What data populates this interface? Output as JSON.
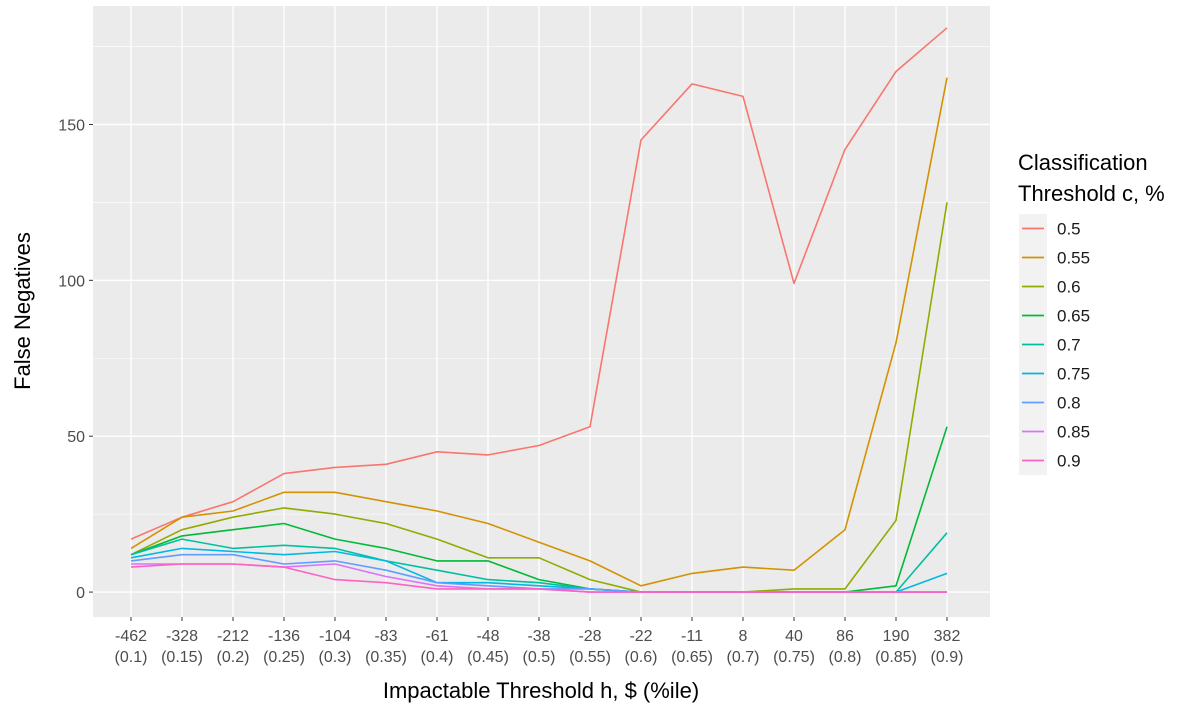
{
  "chart_data": {
    "type": "line",
    "title": "",
    "xlabel": "Impactable Threshold h, $ (%ile)",
    "ylabel": "False Negatives",
    "x_categories": [
      {
        "value": "-462",
        "pct": "(0.1)"
      },
      {
        "value": "-328",
        "pct": "(0.15)"
      },
      {
        "value": "-212",
        "pct": "(0.2)"
      },
      {
        "value": "-136",
        "pct": "(0.25)"
      },
      {
        "value": "-104",
        "pct": "(0.3)"
      },
      {
        "value": "-83",
        "pct": "(0.35)"
      },
      {
        "value": "-61",
        "pct": "(0.4)"
      },
      {
        "value": "-48",
        "pct": "(0.45)"
      },
      {
        "value": "-38",
        "pct": "(0.5)"
      },
      {
        "value": "-28",
        "pct": "(0.55)"
      },
      {
        "value": "-22",
        "pct": "(0.6)"
      },
      {
        "value": "-11",
        "pct": "(0.65)"
      },
      {
        "value": "8",
        "pct": "(0.7)"
      },
      {
        "value": "40",
        "pct": "(0.75)"
      },
      {
        "value": "86",
        "pct": "(0.8)"
      },
      {
        "value": "190",
        "pct": "(0.85)"
      },
      {
        "value": "382",
        "pct": "(0.9)"
      }
    ],
    "y_ticks": [
      0,
      50,
      100,
      150
    ],
    "ylim": [
      -8,
      188
    ],
    "grid": true,
    "legend": {
      "title_lines": [
        "Classification",
        "Threshold c, %"
      ],
      "placement": "right"
    },
    "series": [
      {
        "name": "0.5",
        "color": "#F8766D",
        "values": [
          17,
          24,
          29,
          38,
          40,
          41,
          45,
          44,
          47,
          53,
          145,
          163,
          159,
          99,
          142,
          167,
          181
        ]
      },
      {
        "name": "0.55",
        "color": "#D39200",
        "values": [
          14,
          24,
          26,
          32,
          32,
          29,
          26,
          22,
          16,
          10,
          2,
          6,
          8,
          7,
          20,
          80,
          165
        ]
      },
      {
        "name": "0.6",
        "color": "#93AA00",
        "values": [
          12,
          20,
          24,
          27,
          25,
          22,
          17,
          11,
          11,
          4,
          0,
          0,
          0,
          1,
          1,
          23,
          125
        ]
      },
      {
        "name": "0.65",
        "color": "#00BA38",
        "values": [
          12,
          18,
          20,
          22,
          17,
          14,
          10,
          10,
          4,
          1,
          0,
          0,
          0,
          0,
          0,
          2,
          53
        ]
      },
      {
        "name": "0.7",
        "color": "#00C19F",
        "values": [
          12,
          17,
          14,
          15,
          14,
          10,
          7,
          4,
          3,
          1,
          0,
          0,
          0,
          0,
          0,
          0,
          19
        ]
      },
      {
        "name": "0.75",
        "color": "#00B9E3",
        "values": [
          11,
          14,
          13,
          12,
          13,
          10,
          3,
          3,
          2,
          1,
          0,
          0,
          0,
          0,
          0,
          0,
          6
        ]
      },
      {
        "name": "0.8",
        "color": "#619CFF",
        "values": [
          10,
          12,
          12,
          9,
          10,
          7,
          3,
          2,
          1,
          1,
          0,
          0,
          0,
          0,
          0,
          0,
          0
        ]
      },
      {
        "name": "0.85",
        "color": "#DB72FB",
        "values": [
          9,
          9,
          9,
          8,
          9,
          5,
          2,
          1,
          1,
          0,
          0,
          0,
          0,
          0,
          0,
          0,
          0
        ]
      },
      {
        "name": "0.9",
        "color": "#FF61C3",
        "values": [
          8,
          9,
          9,
          8,
          4,
          3,
          1,
          1,
          1,
          0,
          0,
          0,
          0,
          0,
          0,
          0,
          0
        ]
      }
    ]
  }
}
